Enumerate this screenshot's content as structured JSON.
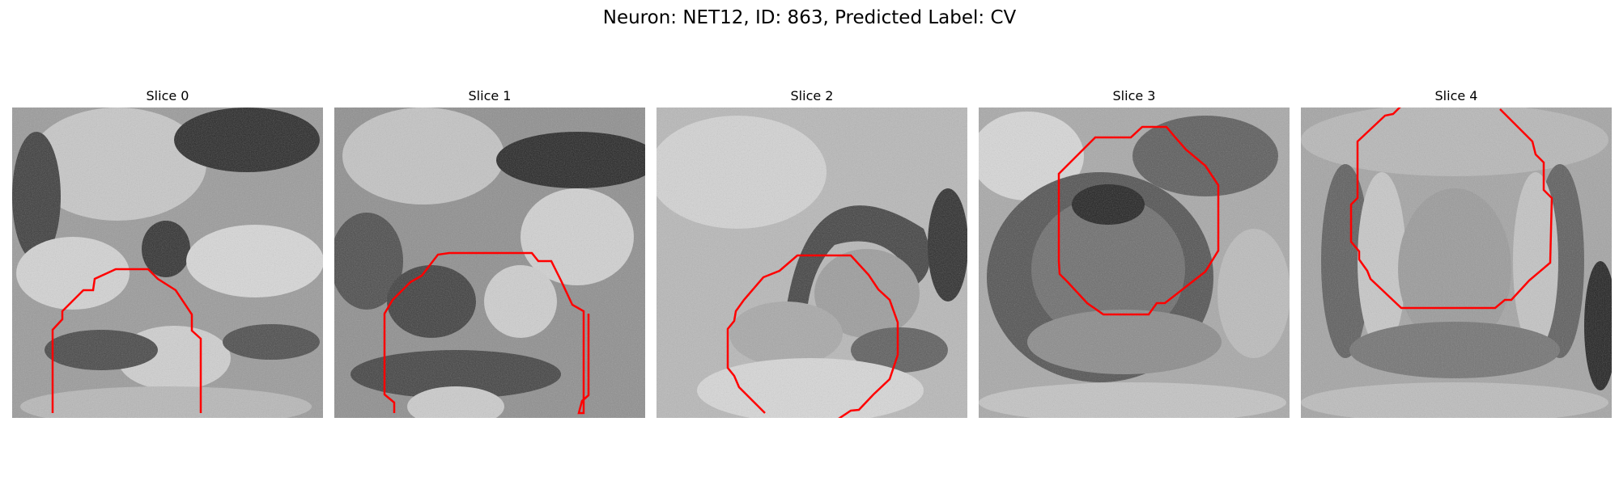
{
  "figure": {
    "title": "Neuron: NET12, ID: 863, Predicted Label: CV"
  },
  "colors": {
    "contour": "#ff0000",
    "background": "#ffffff",
    "colormap": "gray"
  },
  "panels": [
    {
      "title": "Slice 0"
    },
    {
      "title": "Slice 1"
    },
    {
      "title": "Slice 2"
    },
    {
      "title": "Slice 3"
    },
    {
      "title": "Slice 4"
    }
  ]
}
